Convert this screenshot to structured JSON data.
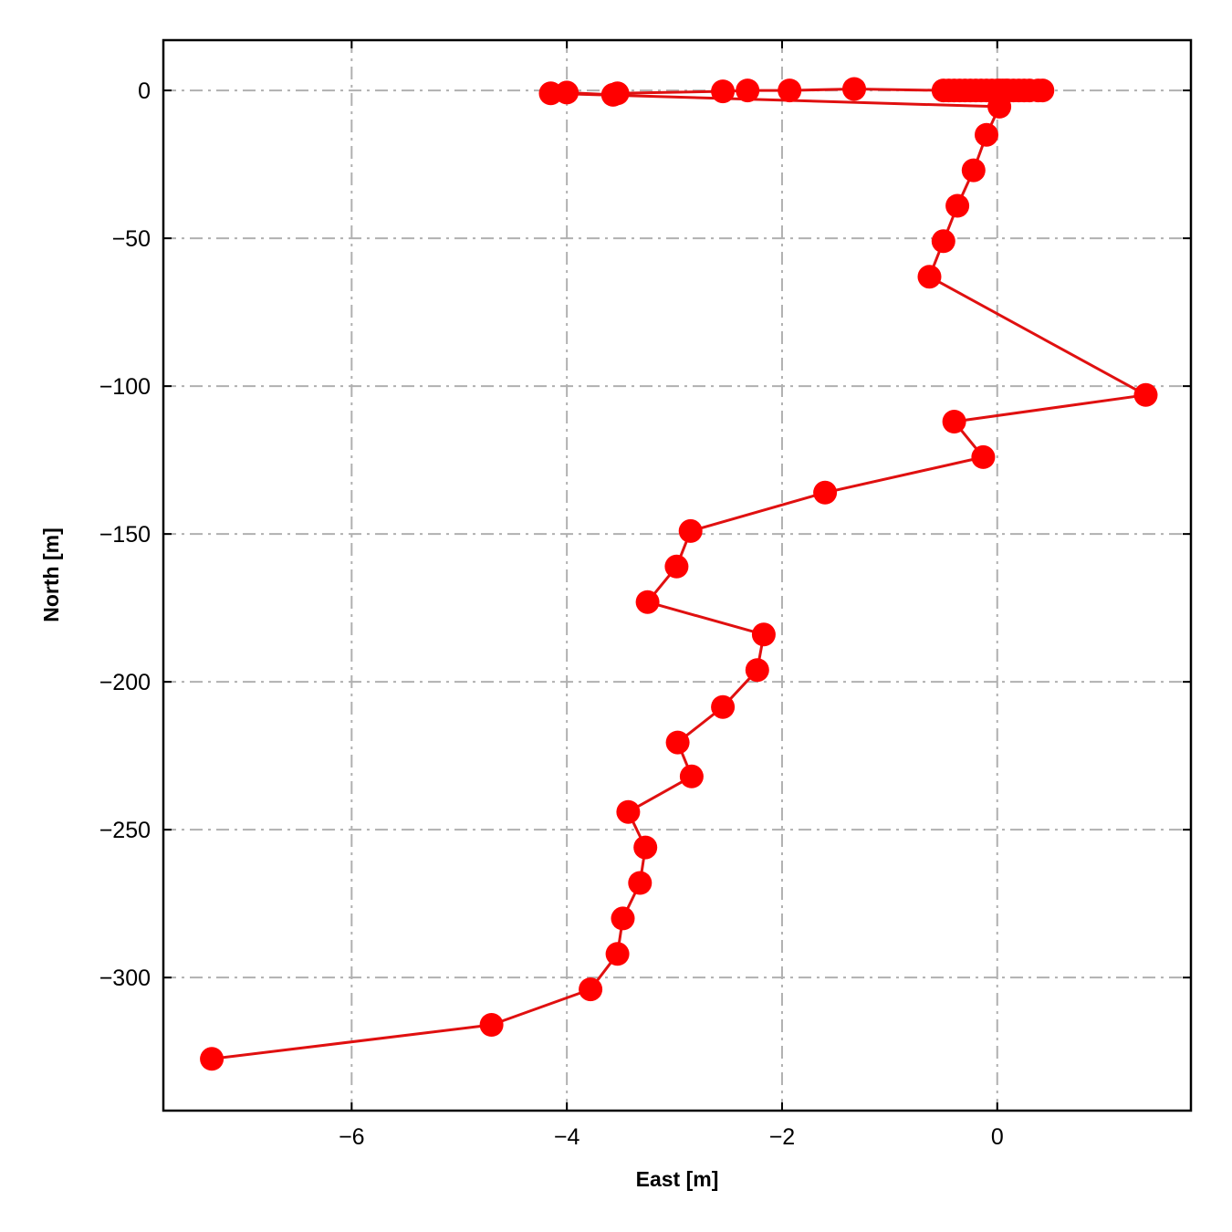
{
  "chart_data": {
    "type": "line",
    "title": "",
    "xlabel": "East [m]",
    "ylabel": "North [m]",
    "xlim": [
      -7.75,
      1.8
    ],
    "ylim": [
      -345,
      17
    ],
    "xticks": [
      -6,
      -4,
      -2,
      0
    ],
    "yticks": [
      0,
      -50,
      -100,
      -150,
      -200,
      -250,
      -300
    ],
    "xtick_labels": [
      "−6",
      "−4",
      "−2",
      "0"
    ],
    "ytick_labels": [
      "0",
      "−50",
      "−100",
      "−150",
      "−200",
      "−250",
      "−300"
    ],
    "grid": true,
    "legend": false,
    "series": [
      {
        "color": "#ff0000",
        "line_color": "#e01010",
        "marker": "circle",
        "x": [
          0.42,
          0.38,
          0.3,
          0.25,
          0.2,
          0.15,
          0.1,
          0.08,
          0.05,
          0.02,
          0.0,
          -0.05,
          -0.1,
          -0.15,
          -0.2,
          -0.25,
          -0.3,
          -0.35,
          -0.4,
          -0.45,
          -0.5,
          -1.33,
          -1.93,
          -2.32,
          -2.55,
          -3.53,
          -3.57,
          -4.0,
          -4.15,
          0.02,
          -0.1,
          -0.22,
          -0.37,
          -0.5,
          -0.63,
          1.38,
          -0.4,
          -0.13,
          -1.6,
          -2.85,
          -2.98,
          -3.25,
          -2.17,
          -2.23,
          -2.55,
          -2.97,
          -2.84,
          -3.43,
          -3.27,
          -3.32,
          -3.48,
          -3.53,
          -3.78,
          -4.7,
          -7.3
        ],
        "y": [
          0,
          0,
          0,
          0,
          0,
          0,
          0,
          0,
          0,
          0,
          0,
          0,
          0,
          0,
          0,
          0,
          0,
          0,
          0,
          0,
          0,
          0.5,
          0,
          0,
          -0.3,
          -1,
          -1.5,
          -0.7,
          -1,
          -5.5,
          -15,
          -27,
          -39,
          -51,
          -63,
          -103,
          -112,
          -124,
          -136,
          -149,
          -161,
          -173,
          -184,
          -196,
          -208.5,
          -220.5,
          -232,
          -244,
          -256,
          -268,
          -280,
          -292,
          -304,
          -316,
          -327.5
        ]
      }
    ]
  }
}
